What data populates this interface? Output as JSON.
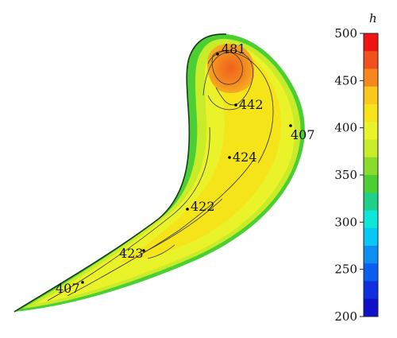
{
  "colorbar": {
    "title": "h",
    "ticks": [
      "500",
      "450",
      "400",
      "350",
      "300",
      "250",
      "200"
    ],
    "range": [
      200,
      500
    ],
    "colors": [
      "#f01414",
      "#f2501c",
      "#f6861e",
      "#fbc81e",
      "#f5e41a",
      "#eaf229",
      "#c8ec2a",
      "#8adc2c",
      "#4bcf33",
      "#1fd08a",
      "#0ee7d8",
      "#06c7f5",
      "#0d8ff2",
      "#0b5ff0",
      "#1030e0",
      "#1010c8"
    ]
  },
  "points": [
    {
      "id": "p481",
      "value": "481"
    },
    {
      "id": "p442",
      "value": "442"
    },
    {
      "id": "p407a",
      "value": "407"
    },
    {
      "id": "p424",
      "value": "424"
    },
    {
      "id": "p422",
      "value": "422"
    },
    {
      "id": "p423",
      "value": "423"
    },
    {
      "id": "p407b",
      "value": "407"
    }
  ]
}
